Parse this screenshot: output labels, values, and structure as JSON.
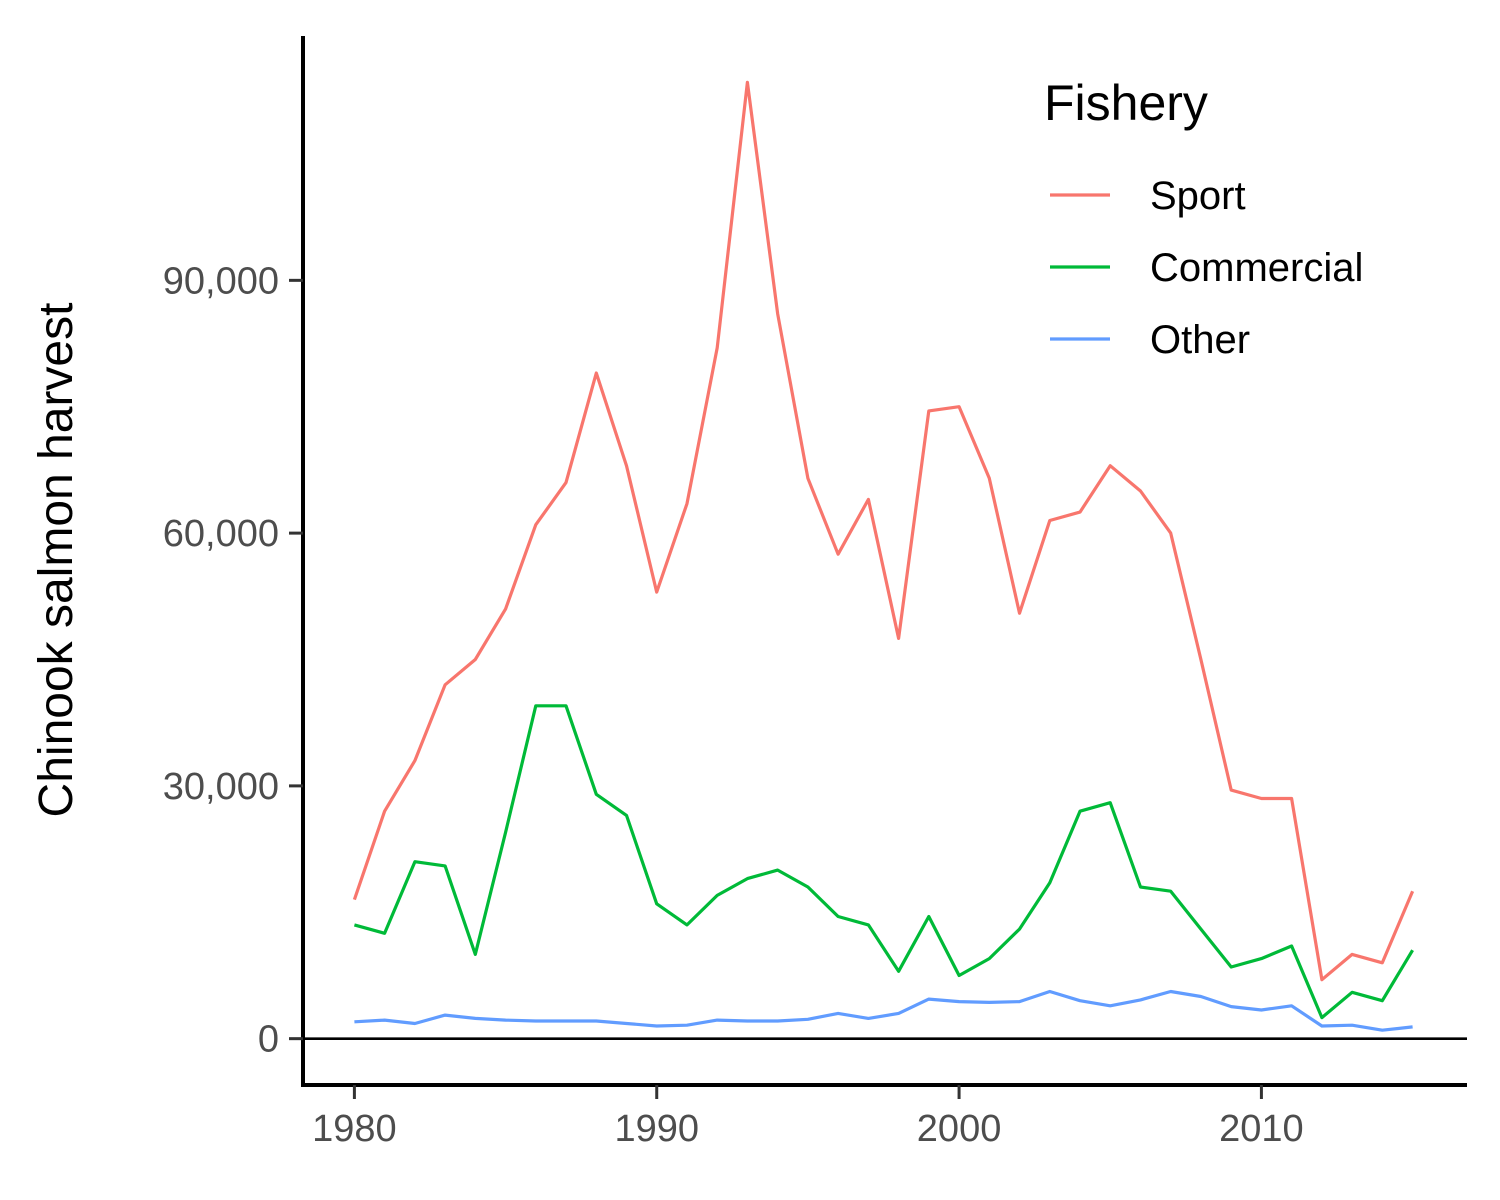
{
  "chart_data": {
    "type": "line",
    "title": "",
    "xlabel": "",
    "ylabel": "Chinook salmon harvest",
    "x": [
      1980,
      1981,
      1982,
      1983,
      1984,
      1985,
      1986,
      1987,
      1988,
      1989,
      1990,
      1991,
      1992,
      1993,
      1994,
      1995,
      1996,
      1997,
      1998,
      1999,
      2000,
      2001,
      2002,
      2003,
      2004,
      2005,
      2006,
      2007,
      2008,
      2009,
      2010,
      2011,
      2012,
      2013,
      2014,
      2015
    ],
    "xlim": [
      1978.3,
      2016.8
    ],
    "ylim": [
      -5500,
      119000
    ],
    "x_ticks": [
      1980,
      1990,
      2000,
      2010
    ],
    "x_tick_labels": [
      "1980",
      "1990",
      "2000",
      "2010"
    ],
    "y_ticks": [
      0,
      30000,
      60000,
      90000
    ],
    "y_tick_labels": [
      "0",
      "30,000",
      "60,000",
      "90,000"
    ],
    "hline": 0,
    "grid": false,
    "legend": {
      "title": "Fishery",
      "placement": "top-right"
    },
    "series": [
      {
        "name": "Sport",
        "color": "#F8766D",
        "values": [
          16500,
          27000,
          33000,
          42000,
          45000,
          51000,
          61000,
          66000,
          79000,
          68000,
          53000,
          63500,
          82000,
          113500,
          86000,
          66500,
          57500,
          64000,
          47500,
          74500,
          75000,
          66500,
          50500,
          61500,
          62500,
          68000,
          65000,
          60000,
          45000,
          29500,
          28500,
          28500,
          7000,
          10000,
          9000,
          17500
        ]
      },
      {
        "name": "Commercial",
        "color": "#00BA38",
        "values": [
          13500,
          12500,
          21000,
          20500,
          10000,
          24500,
          39500,
          39500,
          29000,
          26500,
          16000,
          13500,
          17000,
          19000,
          20000,
          18000,
          14500,
          13500,
          8000,
          14500,
          7500,
          9500,
          13000,
          18500,
          27000,
          28000,
          18000,
          17500,
          13000,
          8500,
          9500,
          11000,
          2500,
          5500,
          4500,
          10500
        ]
      },
      {
        "name": "Other",
        "color": "#619CFF",
        "values": [
          2000,
          2200,
          1800,
          2800,
          2400,
          2200,
          2100,
          2100,
          2100,
          1800,
          1500,
          1600,
          2200,
          2100,
          2100,
          2300,
          3000,
          2400,
          3000,
          4700,
          4400,
          4300,
          4400,
          5600,
          4500,
          3900,
          4600,
          5600,
          5000,
          3800,
          3400,
          3900,
          1500,
          1600,
          1000,
          1400
        ]
      }
    ]
  }
}
